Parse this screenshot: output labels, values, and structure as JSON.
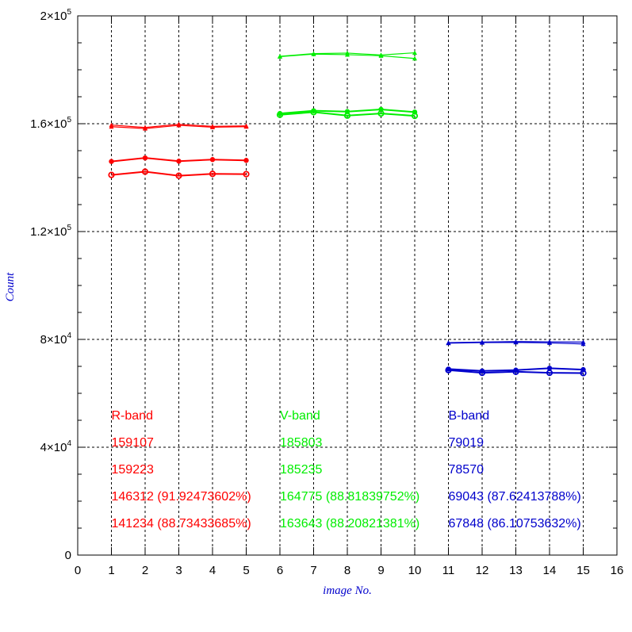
{
  "chart_data": {
    "type": "line",
    "xlabel": "image No.",
    "ylabel": "Count",
    "xlim": [
      0,
      16
    ],
    "ylim": [
      0,
      200000
    ],
    "x_ticks": [
      "0",
      "1",
      "2",
      "3",
      "4",
      "5",
      "6",
      "7",
      "8",
      "9",
      "10",
      "11",
      "12",
      "13",
      "14",
      "15",
      "16"
    ],
    "y_ticks": [
      {
        "value": 0,
        "mantissa": "0",
        "exp": ""
      },
      {
        "value": 40000,
        "mantissa": "4×10",
        "exp": "4"
      },
      {
        "value": 80000,
        "mantissa": "8×10",
        "exp": "4"
      },
      {
        "value": 120000,
        "mantissa": "1.2×10",
        "exp": "5"
      },
      {
        "value": 160000,
        "mantissa": "1.6×10",
        "exp": "5"
      },
      {
        "value": 200000,
        "mantissa": "2×10",
        "exp": "5"
      }
    ],
    "grid": true,
    "series": [
      {
        "band": "R",
        "color": "#ff0000",
        "marker": "triangle",
        "x": [
          1,
          2,
          3,
          4,
          5
        ],
        "values": [
          159500,
          158600,
          159800,
          159000,
          159200
        ]
      },
      {
        "band": "R",
        "color": "#ff0000",
        "marker": "triangle",
        "x": [
          1,
          2,
          3,
          4,
          5
        ],
        "values": [
          158900,
          158200,
          159400,
          158700,
          158900
        ]
      },
      {
        "band": "R",
        "color": "#ff0000",
        "marker": "dot",
        "x": [
          1,
          2,
          3,
          4,
          5
        ],
        "values": [
          146000,
          147300,
          146100,
          146700,
          146400
        ]
      },
      {
        "band": "R",
        "color": "#ff0000",
        "marker": "circle",
        "x": [
          1,
          2,
          3,
          4,
          5
        ],
        "values": [
          141000,
          142200,
          140700,
          141400,
          141300
        ]
      },
      {
        "band": "V",
        "color": "#00ee00",
        "marker": "triangle",
        "x": [
          6,
          7,
          8,
          9,
          10
        ],
        "values": [
          185000,
          186000,
          186200,
          185500,
          186300
        ]
      },
      {
        "band": "V",
        "color": "#00ee00",
        "marker": "triangle",
        "x": [
          6,
          7,
          8,
          9,
          10
        ],
        "values": [
          184900,
          185800,
          185600,
          185200,
          184200
        ]
      },
      {
        "band": "V",
        "color": "#00ee00",
        "marker": "dot",
        "x": [
          6,
          7,
          8,
          9,
          10
        ],
        "values": [
          163800,
          164800,
          164500,
          165300,
          164300
        ]
      },
      {
        "band": "V",
        "color": "#00ee00",
        "marker": "circle",
        "x": [
          6,
          7,
          8,
          9,
          10
        ],
        "values": [
          163300,
          164300,
          163000,
          163800,
          162900
        ]
      },
      {
        "band": "B",
        "color": "#0000cc",
        "marker": "triangle",
        "x": [
          11,
          12,
          13,
          14,
          15
        ],
        "values": [
          78800,
          79000,
          79200,
          79100,
          79000
        ]
      },
      {
        "band": "B",
        "color": "#0000cc",
        "marker": "triangle",
        "x": [
          11,
          12,
          13,
          14,
          15
        ],
        "values": [
          78600,
          78800,
          78900,
          78700,
          78300
        ]
      },
      {
        "band": "B",
        "color": "#0000cc",
        "marker": "dot",
        "x": [
          11,
          12,
          13,
          14,
          15
        ],
        "values": [
          69000,
          68300,
          68600,
          69300,
          68800
        ]
      },
      {
        "band": "B",
        "color": "#0000cc",
        "marker": "circle",
        "x": [
          11,
          12,
          13,
          14,
          15
        ],
        "values": [
          68600,
          67600,
          68000,
          67600,
          67500
        ]
      }
    ],
    "annotations": [
      {
        "color": "#ff0000",
        "x": 1,
        "lines": [
          "R-band",
          "159107",
          "159223",
          "146312 (91.92473602%)",
          "141234 (88.73433685%)"
        ]
      },
      {
        "color": "#00ee00",
        "x": 6,
        "lines": [
          "V-band",
          "185803",
          "185235",
          "164775 (88.81839752%)",
          "163643 (88.20821381%)"
        ]
      },
      {
        "color": "#0000cc",
        "x": 11,
        "lines": [
          "B-band",
          "79019",
          "78570",
          "69043 (87.62413788%)",
          "67848 (86.10753632%)"
        ]
      }
    ]
  }
}
